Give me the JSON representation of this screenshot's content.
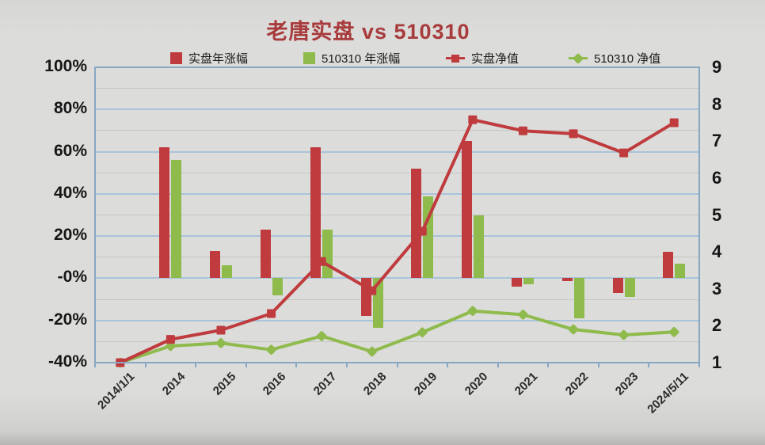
{
  "title": "老唐实盘 vs 510310",
  "colors": {
    "portfolio_red": "#bf3b3d",
    "etf_green": "#8fba4c",
    "title_red": "#a83b3c",
    "major_gridline": "#a9c3da",
    "minor_gridline": "#c6c6c3",
    "plot_border": "#87a7c4",
    "text": "#1b1b1b",
    "background": "#d9d9d7"
  },
  "legend": {
    "items": [
      {
        "label": "实盘年涨幅",
        "marker": "square",
        "color": "#bf3b3d"
      },
      {
        "label": "510310 年涨幅",
        "marker": "square",
        "color": "#8fba4c"
      },
      {
        "label": "实盘净值",
        "marker": "line-square",
        "color": "#bf3b3d"
      },
      {
        "label": "510310 净值",
        "marker": "line-diamond",
        "color": "#8fba4c"
      }
    ]
  },
  "chart_data": {
    "type": "bar",
    "subtype": "combo dual-axis: yearly-return bars (left % axis) + net-worth lines (right axis)",
    "categories": [
      "2014/1/1",
      "2014",
      "2015",
      "2016",
      "2017",
      "2018",
      "2019",
      "2020",
      "2021",
      "2022",
      "2023",
      "2024/5/11"
    ],
    "series": [
      {
        "name": "实盘年涨幅",
        "type": "bar",
        "axis": "left",
        "unit": "%",
        "color": "#bf3b3d",
        "values": [
          null,
          62,
          13,
          23,
          62,
          -18,
          52,
          65,
          -4,
          -1.5,
          -7,
          12.5
        ]
      },
      {
        "name": "510310 年涨幅",
        "type": "bar",
        "axis": "left",
        "unit": "%",
        "color": "#8fba4c",
        "values": [
          null,
          56,
          6,
          -8,
          23,
          -23.5,
          39,
          30,
          -3,
          -19,
          -9,
          7
        ]
      },
      {
        "name": "实盘净值",
        "type": "line",
        "marker": "square",
        "axis": "right",
        "color": "#bf3b3d",
        "values": [
          1.0,
          1.63,
          1.88,
          2.33,
          3.74,
          2.95,
          4.56,
          7.58,
          7.28,
          7.2,
          6.68,
          7.5
        ]
      },
      {
        "name": "510310 净值",
        "type": "line",
        "marker": "diamond",
        "axis": "right",
        "color": "#8fba4c",
        "values": [
          1.0,
          1.45,
          1.53,
          1.35,
          1.72,
          1.3,
          1.82,
          2.4,
          2.3,
          1.9,
          1.75,
          1.83
        ]
      }
    ],
    "left_axis": {
      "min": -40,
      "max": 100,
      "tick_step": 20,
      "minor_step": 10,
      "tick_labels": [
        "100%",
        "80%",
        "60%",
        "40%",
        "20%",
        "-0%",
        "-20%",
        "-40%"
      ]
    },
    "right_axis": {
      "min": 1,
      "max": 9,
      "tick_step": 1,
      "tick_labels": [
        "9",
        "8",
        "7",
        "6",
        "5",
        "4",
        "3",
        "2",
        "1"
      ]
    },
    "grid": "horizontal: major every 20% (blue), minor every 10% (gray)",
    "legend_position": "top"
  }
}
